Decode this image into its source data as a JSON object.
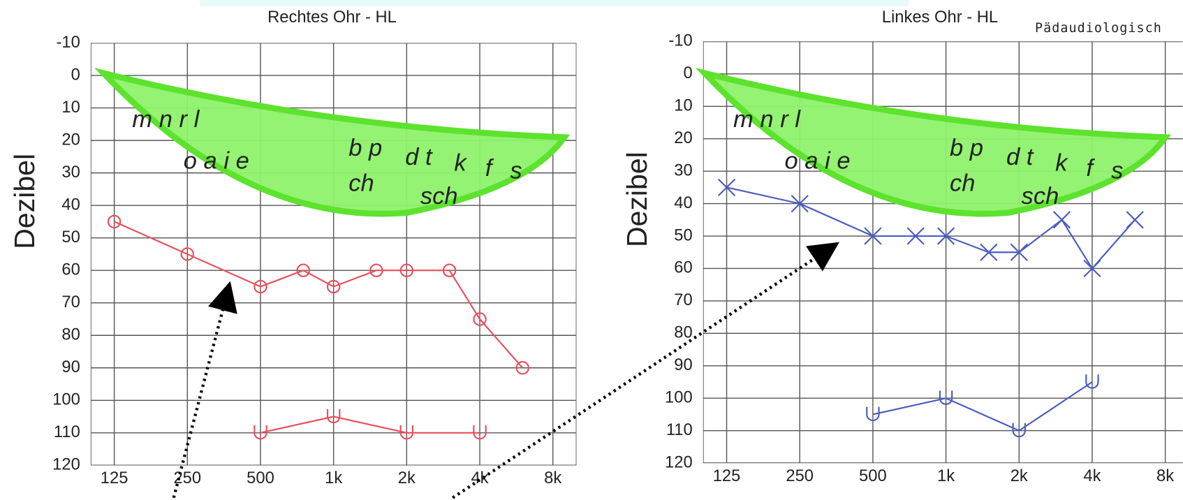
{
  "chart_data": [
    {
      "type": "line",
      "title": "Rechtes Ohr - HL",
      "y_label": "Dezibel",
      "xscale": "log",
      "y_reversed": true,
      "grid": true,
      "xlim": [
        100,
        10000
      ],
      "ylim": [
        -10,
        120
      ],
      "xticks": [
        125,
        250,
        500,
        {
          "value": 1000,
          "label": "1k"
        },
        {
          "value": 2000,
          "label": "2k"
        },
        {
          "value": 4000,
          "label": "4k"
        },
        {
          "value": 8000,
          "label": "8k"
        }
      ],
      "yticks": [
        -10,
        0,
        10,
        20,
        30,
        40,
        50,
        60,
        70,
        80,
        90,
        100,
        110,
        120
      ],
      "annotations": [
        "m n r l",
        "o a i e",
        "b p",
        "d t",
        "k",
        "f",
        "s",
        "ch",
        "sch"
      ],
      "series": [
        {
          "marker": "circle",
          "color": "#e8505b",
          "x": [
            125,
            250,
            500,
            750,
            1000,
            1500,
            2000,
            3000,
            4000,
            6000
          ],
          "values": [
            45,
            55,
            65,
            60,
            65,
            60,
            60,
            60,
            75,
            90
          ]
        },
        {
          "marker": "U",
          "color": "#e8505b",
          "x": [
            500,
            1000,
            2000,
            4000
          ],
          "values": [
            110,
            105,
            110,
            110
          ]
        }
      ]
    },
    {
      "type": "line",
      "title": "Linkes Ohr - HL",
      "note": "Pädaudiologisch",
      "y_label": "Dezibel",
      "xscale": "log",
      "y_reversed": true,
      "grid": true,
      "xlim": [
        100,
        10000
      ],
      "ylim": [
        -10,
        120
      ],
      "xticks": [
        125,
        250,
        500,
        {
          "value": 1000,
          "label": "1k"
        },
        {
          "value": 2000,
          "label": "2k"
        },
        {
          "value": 4000,
          "label": "4k"
        },
        {
          "value": 8000,
          "label": "8k"
        }
      ],
      "yticks": [
        -10,
        0,
        10,
        20,
        30,
        40,
        50,
        60,
        70,
        80,
        90,
        100,
        110,
        120
      ],
      "annotations": [
        "m n r l",
        "o a i e",
        "b p",
        "d t",
        "k",
        "f",
        "s",
        "ch",
        "sch"
      ],
      "series": [
        {
          "marker": "x",
          "color": "#4a5cc0",
          "x": [
            125,
            250,
            500,
            750,
            1000,
            1500,
            2000,
            3000,
            4000,
            6000
          ],
          "values": [
            35,
            40,
            50,
            50,
            50,
            55,
            55,
            45,
            60,
            45
          ]
        },
        {
          "marker": "U",
          "color": "#4a5cc0",
          "x": [
            500,
            1000,
            2000,
            4000
          ],
          "values": [
            105,
            100,
            110,
            95
          ]
        }
      ]
    }
  ]
}
